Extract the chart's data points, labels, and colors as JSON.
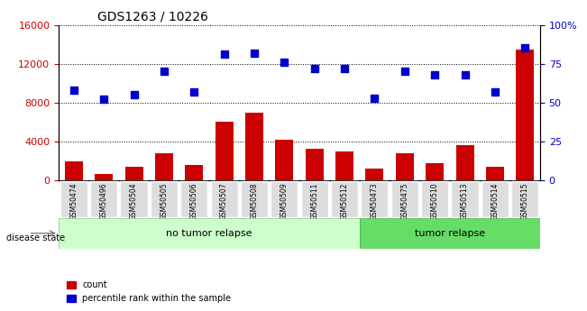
{
  "title": "GDS1263 / 10226",
  "categories": [
    "GSM50474",
    "GSM50496",
    "GSM50504",
    "GSM50505",
    "GSM50506",
    "GSM50507",
    "GSM50508",
    "GSM50509",
    "GSM50511",
    "GSM50512",
    "GSM50473",
    "GSM50475",
    "GSM50510",
    "GSM50513",
    "GSM50514",
    "GSM50515"
  ],
  "counts": [
    2000,
    700,
    1400,
    2800,
    1600,
    6000,
    7000,
    4200,
    3300,
    3000,
    1200,
    2800,
    1800,
    3600,
    1400,
    13500
  ],
  "percentiles": [
    58,
    52,
    55,
    70,
    57,
    81,
    82,
    76,
    72,
    72,
    53,
    70,
    68,
    68,
    57,
    85
  ],
  "bar_color": "#cc0000",
  "dot_color": "#0000cc",
  "ylim_left": [
    0,
    16000
  ],
  "ylim_right": [
    0,
    100
  ],
  "yticks_left": [
    0,
    4000,
    8000,
    12000,
    16000
  ],
  "yticks_right": [
    0,
    25,
    50,
    75,
    100
  ],
  "ytick_labels_right": [
    "0",
    "25",
    "50",
    "75",
    "100%"
  ],
  "no_tumor_indices": [
    0,
    9
  ],
  "tumor_indices": [
    10,
    15
  ],
  "no_tumor_label": "no tumor relapse",
  "tumor_label": "tumor relapse",
  "disease_state_label": "disease state",
  "legend_count": "count",
  "legend_pct": "percentile rank within the sample",
  "no_tumor_color": "#ccffcc",
  "tumor_color": "#66dd66",
  "xticklabel_bg": "#dddddd",
  "grid_color": "#000000",
  "grid_style": "dotted"
}
